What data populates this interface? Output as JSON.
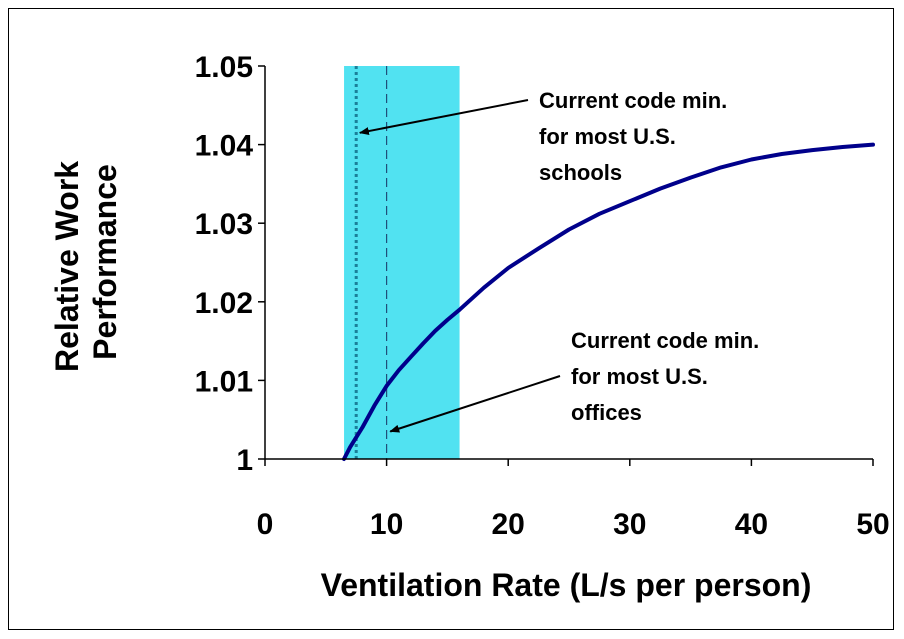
{
  "chart_data": {
    "type": "line",
    "title": "",
    "xlabel": "Ventilation Rate (L/s per person)",
    "ylabel_lines": [
      "Relative Work",
      "Performance"
    ],
    "xlim": [
      0,
      50
    ],
    "ylim": [
      1,
      1.05
    ],
    "x_ticks": [
      "0",
      "10",
      "20",
      "30",
      "40",
      "50"
    ],
    "y_ticks": [
      "1",
      "1.01",
      "1.02",
      "1.03",
      "1.04",
      "1.05"
    ],
    "grid": false,
    "series": [
      {
        "color": "#00008b",
        "x": [
          6.5,
          7,
          8,
          9,
          10,
          11,
          12,
          13,
          14,
          15,
          16,
          18,
          20,
          22.5,
          25,
          27.5,
          30,
          32.5,
          35,
          37.5,
          40,
          42.5,
          45,
          47.5,
          50
        ],
        "y": [
          1.0,
          1.0015,
          1.004,
          1.0068,
          1.0093,
          1.0113,
          1.013,
          1.0147,
          1.0163,
          1.0177,
          1.019,
          1.0218,
          1.0243,
          1.0268,
          1.0292,
          1.0312,
          1.0328,
          1.0344,
          1.0358,
          1.0371,
          1.0381,
          1.0388,
          1.0393,
          1.0397,
          1.04
        ]
      }
    ],
    "shaded_region": {
      "x_range": [
        6.5,
        16
      ],
      "color": "#33ddee"
    },
    "reference_lines": [
      {
        "x": 7.5,
        "style": "dotted"
      },
      {
        "x": 10,
        "style": "dashed"
      }
    ],
    "annotations": [
      {
        "lines": [
          "Current code min.",
          "for most U.S.",
          "schools"
        ],
        "arrow_to": {
          "x": 7.8,
          "y": 1.0415
        }
      },
      {
        "lines": [
          "Current code min.",
          "for  most U.S.",
          "offices"
        ],
        "arrow_to": {
          "x": 10.3,
          "y": 1.0035
        }
      }
    ]
  }
}
